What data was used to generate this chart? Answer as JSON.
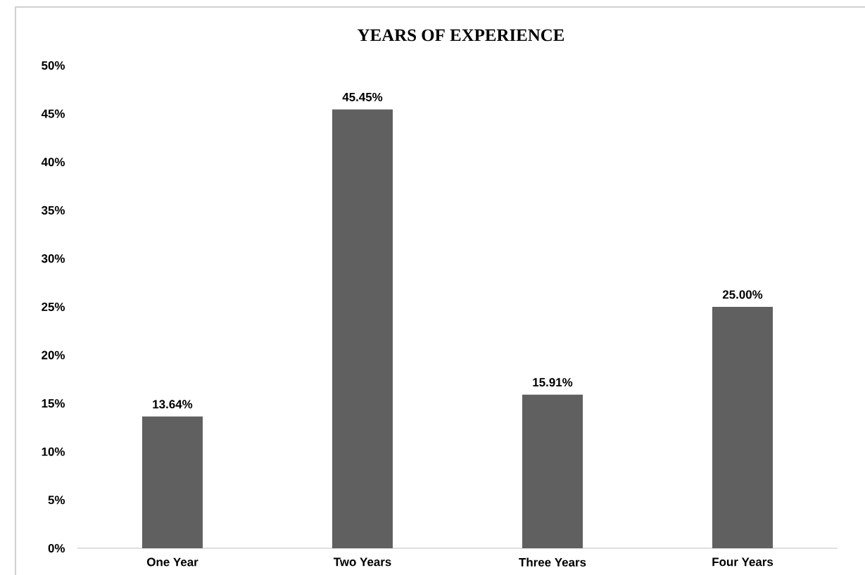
{
  "chart_data": {
    "type": "bar",
    "title": "YEARS OF EXPERIENCE",
    "categories": [
      "One Year",
      "Two Years",
      "Three Years",
      "Four Years"
    ],
    "values": [
      13.64,
      45.45,
      15.91,
      25.0
    ],
    "value_labels": [
      "13.64%",
      "45.45%",
      "15.91%",
      "25.00%"
    ],
    "color": "#606060",
    "ylim": [
      0,
      50
    ],
    "yticks": [
      {
        "value": 0,
        "label": "0%"
      },
      {
        "value": 5,
        "label": "5%"
      },
      {
        "value": 10,
        "label": "10%"
      },
      {
        "value": 15,
        "label": "15%"
      },
      {
        "value": 20,
        "label": "20%"
      },
      {
        "value": 25,
        "label": "25%"
      },
      {
        "value": 30,
        "label": "30%"
      },
      {
        "value": 35,
        "label": "35%"
      },
      {
        "value": 40,
        "label": "40%"
      },
      {
        "value": 45,
        "label": "45%"
      },
      {
        "value": 50,
        "label": "50%"
      }
    ]
  }
}
